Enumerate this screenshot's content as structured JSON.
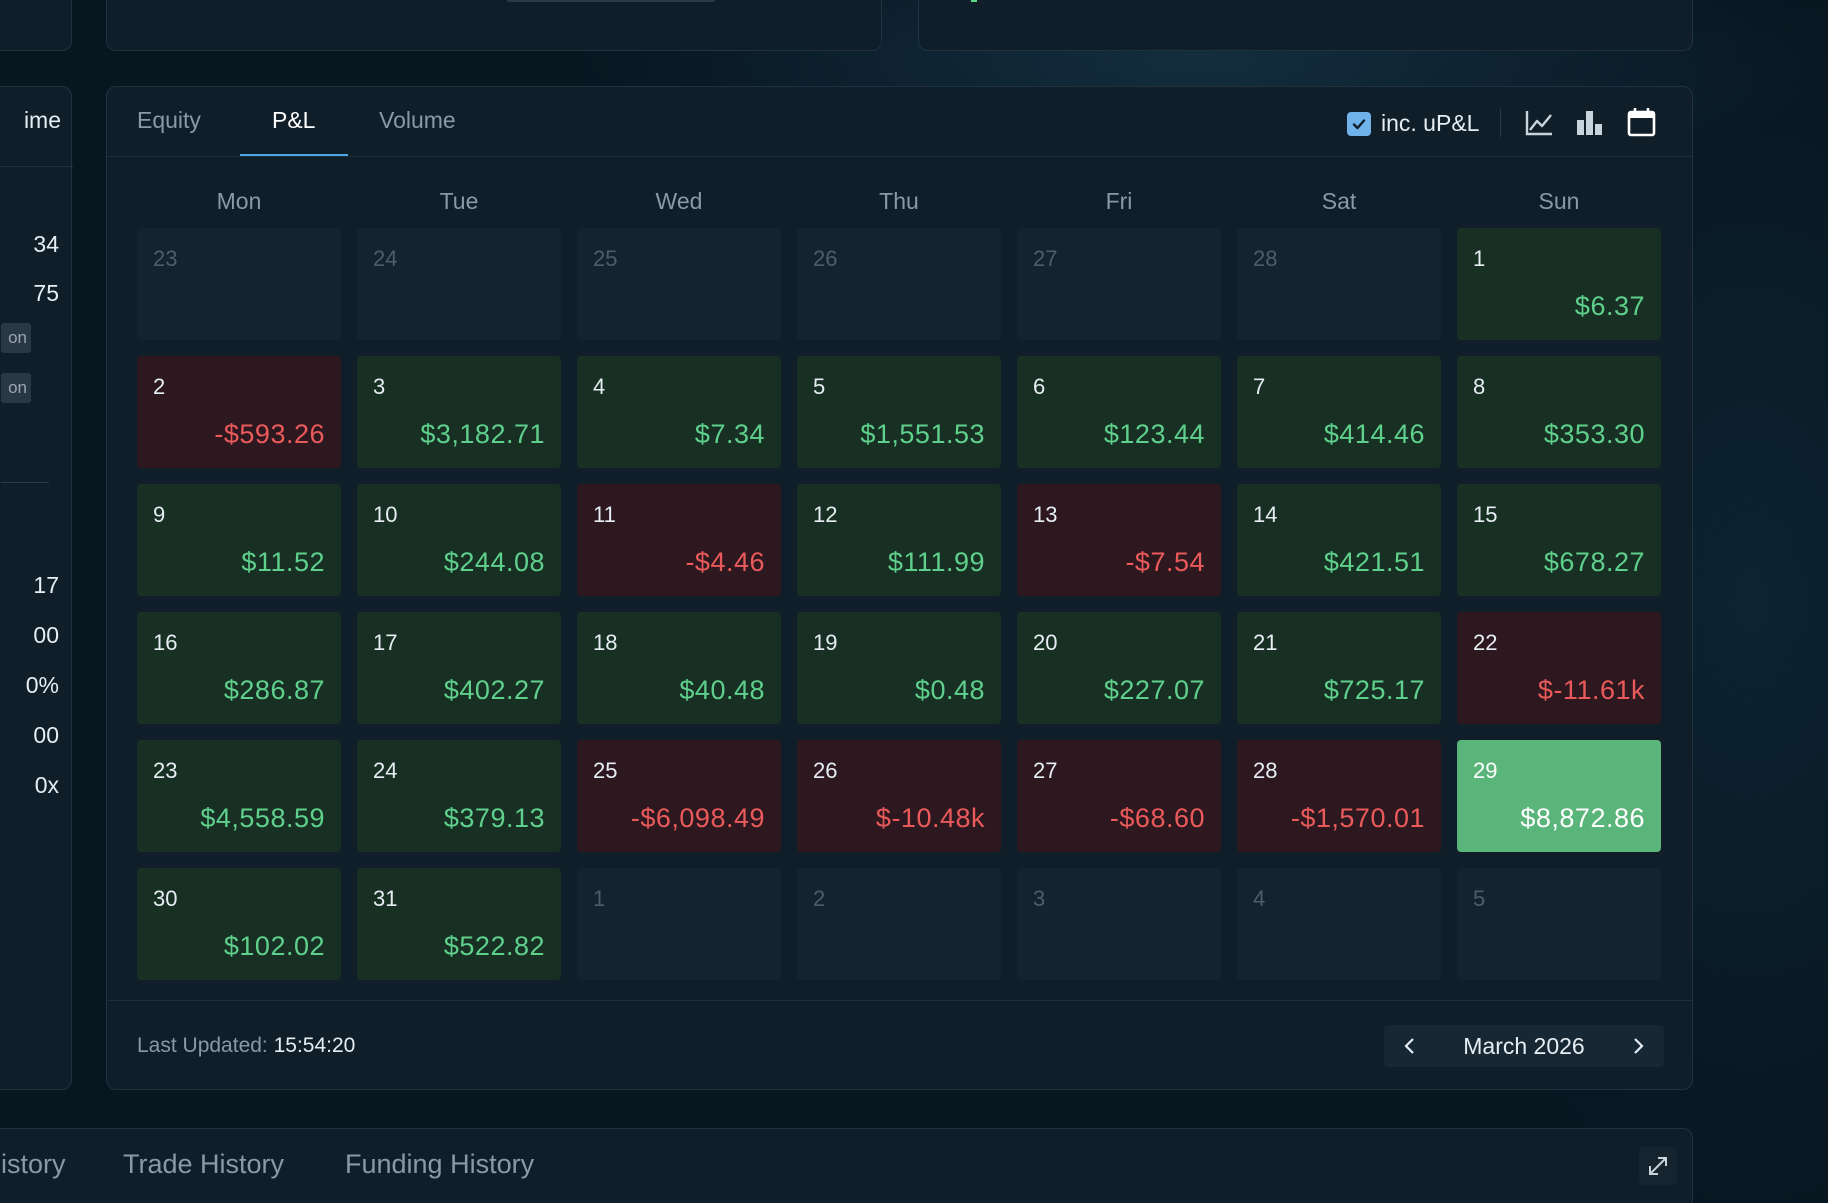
{
  "left_panel": {
    "header_text": "ime",
    "rows": [
      "34",
      "75",
      "17",
      "00",
      "0%",
      "00",
      "0x"
    ],
    "tags": [
      "on",
      "on"
    ]
  },
  "tabs": [
    {
      "label": "Equity",
      "active": false
    },
    {
      "label": "P&L",
      "active": true
    },
    {
      "label": "Volume",
      "active": false
    }
  ],
  "toolbar": {
    "upnl_label": "inc. uP&L",
    "upnl_checked": true,
    "icons": [
      "line-chart-icon",
      "bar-chart-icon",
      "calendar-icon"
    ]
  },
  "weekdays": [
    "Mon",
    "Tue",
    "Wed",
    "Thu",
    "Fri",
    "Sat",
    "Sun"
  ],
  "calendar": [
    [
      {
        "d": "23",
        "out": true
      },
      {
        "d": "24",
        "out": true
      },
      {
        "d": "25",
        "out": true
      },
      {
        "d": "26",
        "out": true
      },
      {
        "d": "27",
        "out": true
      },
      {
        "d": "28",
        "out": true
      },
      {
        "d": "1",
        "pnl": "$6.37",
        "sign": "pos"
      }
    ],
    [
      {
        "d": "2",
        "pnl": "-$593.26",
        "sign": "neg"
      },
      {
        "d": "3",
        "pnl": "$3,182.71",
        "sign": "pos"
      },
      {
        "d": "4",
        "pnl": "$7.34",
        "sign": "pos"
      },
      {
        "d": "5",
        "pnl": "$1,551.53",
        "sign": "pos"
      },
      {
        "d": "6",
        "pnl": "$123.44",
        "sign": "pos"
      },
      {
        "d": "7",
        "pnl": "$414.46",
        "sign": "pos"
      },
      {
        "d": "8",
        "pnl": "$353.30",
        "sign": "pos"
      }
    ],
    [
      {
        "d": "9",
        "pnl": "$11.52",
        "sign": "pos"
      },
      {
        "d": "10",
        "pnl": "$244.08",
        "sign": "pos"
      },
      {
        "d": "11",
        "pnl": "-$4.46",
        "sign": "neg"
      },
      {
        "d": "12",
        "pnl": "$111.99",
        "sign": "pos"
      },
      {
        "d": "13",
        "pnl": "-$7.54",
        "sign": "neg"
      },
      {
        "d": "14",
        "pnl": "$421.51",
        "sign": "pos"
      },
      {
        "d": "15",
        "pnl": "$678.27",
        "sign": "pos"
      }
    ],
    [
      {
        "d": "16",
        "pnl": "$286.87",
        "sign": "pos"
      },
      {
        "d": "17",
        "pnl": "$402.27",
        "sign": "pos"
      },
      {
        "d": "18",
        "pnl": "$40.48",
        "sign": "pos"
      },
      {
        "d": "19",
        "pnl": "$0.48",
        "sign": "pos"
      },
      {
        "d": "20",
        "pnl": "$227.07",
        "sign": "pos"
      },
      {
        "d": "21",
        "pnl": "$725.17",
        "sign": "pos"
      },
      {
        "d": "22",
        "pnl": "$-11.61k",
        "sign": "neg"
      }
    ],
    [
      {
        "d": "23",
        "pnl": "$4,558.59",
        "sign": "pos"
      },
      {
        "d": "24",
        "pnl": "$379.13",
        "sign": "pos"
      },
      {
        "d": "25",
        "pnl": "-$6,098.49",
        "sign": "neg"
      },
      {
        "d": "26",
        "pnl": "$-10.48k",
        "sign": "neg"
      },
      {
        "d": "27",
        "pnl": "-$68.60",
        "sign": "neg"
      },
      {
        "d": "28",
        "pnl": "-$1,570.01",
        "sign": "neg"
      },
      {
        "d": "29",
        "pnl": "$8,872.86",
        "sign": "best"
      }
    ],
    [
      {
        "d": "30",
        "pnl": "$102.02",
        "sign": "pos"
      },
      {
        "d": "31",
        "pnl": "$522.82",
        "sign": "pos"
      },
      {
        "d": "1",
        "out": true
      },
      {
        "d": "2",
        "out": true
      },
      {
        "d": "3",
        "out": true
      },
      {
        "d": "4",
        "out": true
      },
      {
        "d": "5",
        "out": true
      }
    ]
  ],
  "footer": {
    "updated_label": "Last Updated:",
    "updated_time": "15:54:20",
    "month_label": "March 2026"
  },
  "bottom_tabs": [
    "istory",
    "Trade History",
    "Funding History"
  ],
  "colors": {
    "positive_text": "#5fd08c",
    "negative_text": "#ea5a5a",
    "positive_bg": "#183024",
    "negative_bg": "#2d1820",
    "best_bg": "#5ab57a",
    "accent": "#4aa8e6"
  }
}
